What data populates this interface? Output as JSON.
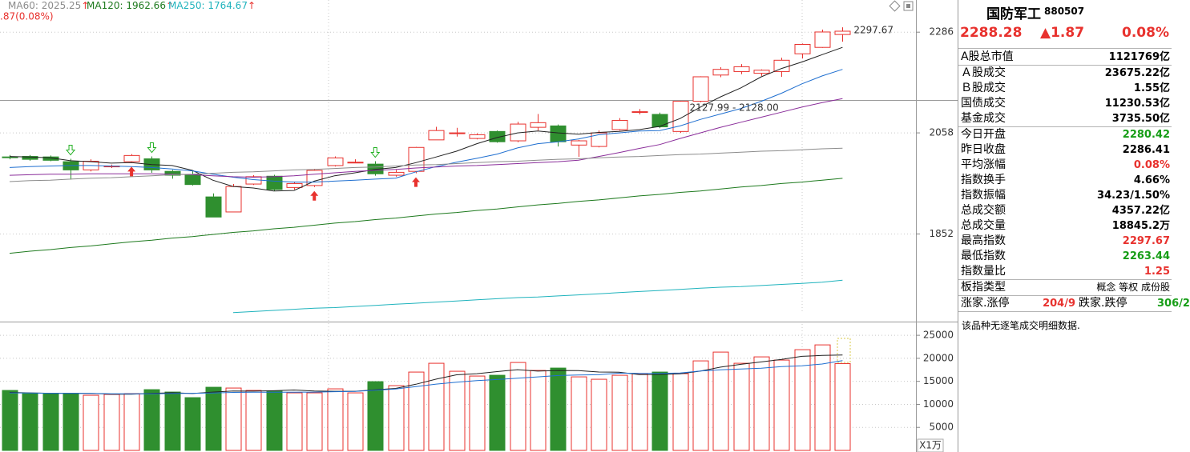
{
  "chart_data": [
    {
      "type": "candlestick",
      "legend": [
        {
          "text": "MA60: 2025.25",
          "arrow": "↑",
          "color": "#8c8c8c"
        },
        {
          "text": "MA120: 1962.66",
          "arrow": "↑",
          "color": "#1e7a1e"
        },
        {
          "text": "MA250: 1764.67",
          "arrow": "↑",
          "color": "#1fb3bd"
        }
      ],
      "change_label": ".87(0.08%)",
      "open": [
        2007,
        2008,
        2007,
        1997,
        1980,
        1987,
        1997,
        2003,
        1977,
        1970,
        1925,
        1895,
        1951,
        1967,
        1944,
        1948,
        1989,
        1995,
        1992,
        1969,
        1977,
        2043,
        2057,
        2046,
        2061,
        2041,
        2070,
        2073,
        2032,
        2029,
        2065,
        2103,
        2098,
        2061,
        2127,
        2186,
        2194,
        2190,
        2194,
        2235,
        2250,
        2280.42
      ],
      "high": [
        2011,
        2011,
        2010,
        2003,
        2002,
        1991,
        2013,
        2008,
        1980,
        1978,
        1932,
        1951,
        1969,
        1970,
        1956,
        1982,
        2008,
        2002,
        1998,
        1980,
        2028,
        2071,
        2069,
        2057,
        2063,
        2082,
        2099,
        2076,
        2043,
        2063,
        2090,
        2110,
        2102,
        2128,
        2183,
        2204,
        2211,
        2199,
        2226,
        2259,
        2292,
        2297.67
      ],
      "low": [
        2002,
        1999,
        1998,
        1960,
        1977,
        1984,
        1995,
        1974,
        1962,
        1948,
        1885,
        1895,
        1949,
        1937,
        1940,
        1945,
        1987,
        1994,
        1968,
        1966,
        1973,
        2043,
        2050,
        2044,
        2037,
        2038,
        2063,
        2029,
        2007,
        2027,
        2063,
        2098,
        2068,
        2058,
        2125,
        2181,
        2188,
        2184,
        2182,
        2224,
        2249,
        2263.44
      ],
      "close": [
        2006,
        2002,
        2000,
        1980,
        1998,
        1988,
        2010,
        1980,
        1969,
        1950,
        1885,
        1946,
        1966,
        1940,
        1952,
        1979,
        2005,
        1996,
        1972,
        1975,
        2027,
        2063,
        2058,
        2054,
        2039,
        2077,
        2080,
        2039,
        2041,
        2058,
        2085,
        2104,
        2071,
        2127,
        2182,
        2199,
        2205,
        2197,
        2220,
        2257,
        2286.41,
        2288.28
      ],
      "series": [
        {
          "color": "#222222",
          "values": [
            2008,
            2007,
            2005,
            1999,
            1997,
            1994,
            1995,
            1991,
            1989,
            1979,
            1959,
            1946,
            1943,
            1937,
            1938,
            1957,
            1968,
            1974,
            1981,
            1985,
            1995,
            2007,
            2019,
            2035,
            2048,
            2058,
            2062,
            2058,
            2055,
            2059,
            2061,
            2065,
            2072,
            2089,
            2114,
            2137,
            2157,
            2182,
            2201,
            2216,
            2233,
            2250
          ]
        },
        {
          "color": "#1f6fd0",
          "values": [
            1985,
            1987,
            1988,
            1989,
            1989,
            1988,
            1987,
            1985,
            1982,
            1978,
            1971,
            1965,
            1960,
            1957,
            1955,
            1955,
            1957,
            1959,
            1961,
            1963,
            1976,
            1987,
            1996,
            2004,
            2013,
            2026,
            2035,
            2039,
            2045,
            2054,
            2058,
            2062,
            2063,
            2073,
            2087,
            2099,
            2111,
            2127,
            2145,
            2166,
            2184,
            2199
          ]
        },
        {
          "color": "#8a2d9a",
          "values": [
            1969,
            1970,
            1971,
            1971,
            1972,
            1972,
            1972,
            1972,
            1971,
            1970,
            1968,
            1966,
            1965,
            1966,
            1968,
            1971,
            1974,
            1977,
            1979,
            1981,
            1984,
            1986,
            1988,
            1989,
            1991,
            1993,
            1995,
            1997,
            2000,
            2008,
            2016,
            2025,
            2033,
            2046,
            2058,
            2070,
            2081,
            2092,
            2103,
            2114,
            2124,
            2133
          ]
        },
        {
          "color": "#8c8c8c",
          "values": [
            1956,
            1958,
            1959,
            1961,
            1963,
            1964,
            1966,
            1968,
            1970,
            1971,
            1973,
            1975,
            1976,
            1978,
            1980,
            1981,
            1983,
            1985,
            1986,
            1988,
            1990,
            1991,
            1993,
            1995,
            1997,
            1998,
            2000,
            2002,
            2003,
            2005,
            2007,
            2008,
            2010,
            2012,
            2013,
            2015,
            2017,
            2019,
            2020,
            2022,
            2024,
            2025.25
          ]
        },
        {
          "color": "#1e7a1e",
          "values": [
            1815,
            1819,
            1822,
            1826,
            1829,
            1833,
            1837,
            1840,
            1844,
            1847,
            1851,
            1855,
            1858,
            1862,
            1865,
            1869,
            1873,
            1876,
            1880,
            1883,
            1887,
            1891,
            1894,
            1898,
            1901,
            1905,
            1909,
            1912,
            1916,
            1919,
            1923,
            1927,
            1930,
            1934,
            1937,
            1941,
            1945,
            1948,
            1952,
            1955,
            1959,
            1962.66
          ]
        },
        {
          "color": "#1fb3bd",
          "values": [
            null,
            null,
            null,
            null,
            null,
            null,
            null,
            null,
            null,
            null,
            null,
            1706,
            1708,
            1710,
            1712,
            1714,
            1715,
            1717,
            1719,
            1721,
            1723,
            1725,
            1727,
            1729,
            1731,
            1733,
            1734,
            1736,
            1738,
            1740,
            1742,
            1744,
            1746,
            1748,
            1750,
            1752,
            1753,
            1755,
            1757,
            1759,
            1761,
            1764.67
          ]
        }
      ],
      "buy_signals": [
        6,
        15,
        20
      ],
      "sell_signals": [
        3,
        7,
        18
      ],
      "annotations": [
        {
          "text": "2297.67",
          "index": 41,
          "value": 2297.67
        },
        {
          "text": "2127.99 - 2128.00",
          "index": 33,
          "value": 2128
        }
      ],
      "log_scale": true,
      "ylim": [
        1693,
        2364
      ],
      "yticks": [
        1852,
        2058,
        2286
      ],
      "grid": true,
      "up_color": "#e8322e",
      "down_color": "#2f8f2f"
    },
    {
      "type": "volume",
      "values": [
        13021,
        12326,
        12326,
        12326,
        11979,
        12153,
        12326,
        13194,
        12674,
        11458,
        13715,
        13542,
        13021,
        12847,
        12500,
        12500,
        13368,
        12500,
        14931,
        14063,
        17014,
        18924,
        17188,
        16146,
        16319,
        19097,
        17361,
        17882,
        15972,
        15451,
        16319,
        16667,
        17014,
        16667,
        19444,
        21354,
        18924,
        20313,
        19618,
        21875,
        22917,
        18845.2
      ],
      "series": [
        {
          "color": "#222222",
          "values": [
            12600,
            12500,
            12400,
            12400,
            12396,
            12222,
            12222,
            12396,
            12530,
            12361,
            12673,
            12917,
            12881,
            12956,
            13125,
            12890,
            12847,
            12847,
            13159,
            13472,
            14375,
            15480,
            16424,
            16667,
            17122,
            17526,
            17222,
            17361,
            17346,
            17033,
            16997,
            16458,
            16486,
            16623,
            17222,
            18090,
            18689,
            19220,
            19750,
            20428,
            20625,
            20713
          ]
        },
        {
          "color": "#1f6fd0",
          "values": [
            12500,
            12450,
            12400,
            12400,
            12380,
            12300,
            12280,
            12300,
            12350,
            12400,
            12470,
            12600,
            12650,
            12650,
            12640,
            12660,
            12760,
            12830,
            13070,
            13330,
            13860,
            14400,
            14820,
            15150,
            15400,
            15670,
            15960,
            16270,
            16380,
            16430,
            16790,
            16740,
            16720,
            16810,
            17260,
            17500,
            17680,
            17870,
            18210,
            18380,
            18770,
            19500
          ]
        }
      ],
      "ylim": [
        0,
        27800
      ],
      "yticks": [
        5000,
        10000,
        15000,
        20000,
        25000
      ],
      "grid": true,
      "unit_label": "X1万"
    }
  ],
  "panel": {
    "name": "国防军工",
    "code": "880507",
    "price": "2288.28",
    "change": "▲1.87",
    "change_pct": "0.08%",
    "groups": [
      [
        {
          "label": "A股总市值",
          "value": "1121769亿"
        }
      ],
      [
        {
          "label": "Ａ股成交",
          "value": "23675.22亿"
        },
        {
          "label": "Ｂ股成交",
          "value": "1.55亿"
        },
        {
          "label": "国债成交",
          "value": "11230.53亿"
        },
        {
          "label": "基金成交",
          "value": "3735.50亿"
        }
      ],
      [
        {
          "label": "今日开盘",
          "value": "2280.42",
          "color": "#169d16"
        },
        {
          "label": "昨日收盘",
          "value": "2286.41"
        },
        {
          "label": "平均涨幅",
          "value": "0.08%",
          "color": "#e8322e"
        },
        {
          "label": "指数换手",
          "value": "4.66%"
        },
        {
          "label": "指数振幅",
          "value": "34.23/1.50%"
        },
        {
          "label": "总成交额",
          "value": "4357.22亿"
        },
        {
          "label": "总成交量",
          "value": "18845.2万"
        },
        {
          "label": "最高指数",
          "value": "2297.67",
          "color": "#e8322e"
        },
        {
          "label": "最低指数",
          "value": "2263.44",
          "color": "#169d16"
        },
        {
          "label": "指数量比",
          "value": "1.25",
          "color": "#e8322e"
        }
      ],
      [
        {
          "label": "板指类型",
          "value": "概念 等权 成份股"
        }
      ]
    ],
    "breadth": {
      "up_label": "涨家.涨停",
      "up_value": "204/9",
      "down_label": "跌家.跌停",
      "down_value": "306/2"
    },
    "note": "该品种无逐笔成交明细数据."
  }
}
